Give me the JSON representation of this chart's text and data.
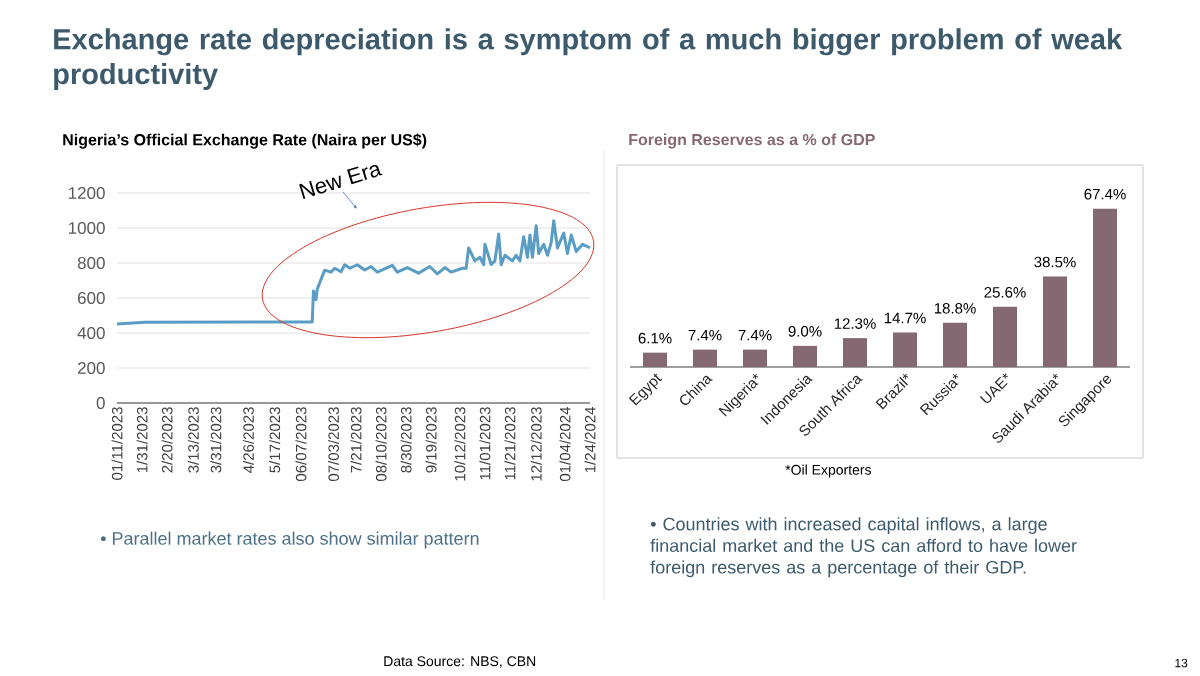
{
  "chart_data": [
    {
      "type": "line",
      "title": "Exchange rate depreciation is a symptom of a much bigger problem of weak productivity",
      "subtitle": "Nigeria’s Official Exchange Rate (Naira per US$)",
      "color": "#5a9dc4",
      "grid": "y",
      "marker": "none",
      "x": [
        "2023-01-11",
        "2023-02-02",
        "2023-06-16",
        "2023-06-17",
        "2023-06-19",
        "2023-06-20",
        "2023-06-23",
        "2023-06-26",
        "2023-07-01",
        "2023-07-04",
        "2023-07-09",
        "2023-07-12",
        "2023-07-16",
        "2023-07-22",
        "2023-07-28",
        "2023-08-02",
        "2023-08-07",
        "2023-08-19",
        "2023-08-23",
        "2023-08-31",
        "2023-09-09",
        "2023-09-18",
        "2023-09-24",
        "2023-09-30",
        "2023-10-05",
        "2023-10-14",
        "2023-10-17",
        "2023-10-19",
        "2023-10-24",
        "2023-10-28",
        "2023-10-31",
        "2023-11-01",
        "2023-11-06",
        "2023-11-09",
        "2023-11-12",
        "2023-11-14",
        "2023-11-17",
        "2023-11-23",
        "2023-11-26",
        "2023-11-29",
        "2023-12-02",
        "2023-12-05",
        "2023-12-07",
        "2023-12-09",
        "2023-12-12",
        "2023-12-14",
        "2023-12-18",
        "2023-12-21",
        "2023-12-24",
        "2023-12-26",
        "2023-12-29",
        "2024-01-03",
        "2024-01-06",
        "2024-01-09",
        "2024-01-13",
        "2024-01-18",
        "2024-01-21",
        "2024-01-24"
      ],
      "values": [
        451,
        461,
        463,
        640,
        590,
        650,
        706,
        759,
        748,
        770,
        750,
        790,
        770,
        790,
        760,
        780,
        748,
        787,
        748,
        774,
        742,
        780,
        738,
        774,
        748,
        770,
        770,
        886,
        812,
        833,
        791,
        907,
        791,
        812,
        965,
        791,
        844,
        812,
        844,
        812,
        950,
        833,
        960,
        833,
        1013,
        854,
        907,
        844,
        918,
        1041,
        886,
        971,
        854,
        960,
        865,
        907,
        897,
        886
      ],
      "xlim": [
        "2023-01-11",
        "2024-01-24"
      ],
      "xticks": [
        {
          "value": "2023-01-11",
          "label": "01/11/2023"
        },
        {
          "value": "2023-01-31",
          "label": "1/31/2023"
        },
        {
          "value": "2023-02-20",
          "label": "2/20/2023"
        },
        {
          "value": "2023-03-13",
          "label": "3/13/2023"
        },
        {
          "value": "2023-03-31",
          "label": "3/31/2023"
        },
        {
          "value": "2023-04-26",
          "label": "4/26/2023"
        },
        {
          "value": "2023-05-17",
          "label": "5/17/2023"
        },
        {
          "value": "2023-06-07",
          "label": "06/07/2023"
        },
        {
          "value": "2023-07-03",
          "label": "07/03/2023"
        },
        {
          "value": "2023-07-21",
          "label": "7/21/2023"
        },
        {
          "value": "2023-08-10",
          "label": "08/10/2023"
        },
        {
          "value": "2023-08-30",
          "label": "8/30/2023"
        },
        {
          "value": "2023-09-19",
          "label": "9/19/2023"
        },
        {
          "value": "2023-10-12",
          "label": "10/12/2023"
        },
        {
          "value": "2023-11-01",
          "label": "11/01/2023"
        },
        {
          "value": "2023-11-21",
          "label": "11/21/2023"
        },
        {
          "value": "2023-12-12",
          "label": "12/12/2023"
        },
        {
          "value": "2024-01-04",
          "label": "01/04/2024"
        },
        {
          "value": "2024-01-24",
          "label": "1/24/2024"
        }
      ],
      "ylim": [
        0,
        1200
      ],
      "yticks": [
        0,
        200,
        400,
        600,
        800,
        1000,
        1200
      ],
      "annotations": [
        "New Era",
        "• Parallel market rates also show similar pattern",
        "Data Source: NBS, CBN"
      ]
    },
    {
      "type": "bar",
      "title": "Foreign Reserves as a % of GDP",
      "color": "#846872",
      "data_labels": true,
      "categories": [
        "Egypt",
        "China",
        "Nigeria*",
        "Indonesia",
        "South Africa",
        "Brazil*",
        "Russia*",
        "UAE*",
        "Saudi Arabia*",
        "Singapore"
      ],
      "values": [
        6.1,
        7.4,
        7.4,
        9.0,
        12.3,
        14.7,
        18.8,
        25.6,
        38.5,
        67.4
      ],
      "value_labels": [
        "6.1%",
        "7.4%",
        "7.4%",
        "9.0%",
        "12.3%",
        "14.7%",
        "18.8%",
        "25.6%",
        "38.5%",
        "67.4%"
      ],
      "annotations": [
        "*Oil Exporters",
        "• Countries with increased capital inflows, a large financial market and the US can afford to have lower foreign reserves as a percentage of their GDP.",
        "13"
      ]
    }
  ]
}
